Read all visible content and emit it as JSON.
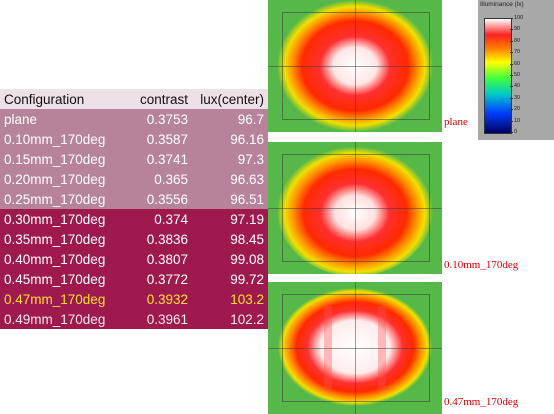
{
  "table": {
    "headers": [
      "Configuration",
      "contrast",
      "lux(center)"
    ],
    "rows": [
      [
        "plane",
        "0.3753",
        "96.7"
      ],
      [
        "0.10mm_170deg",
        "0.3587",
        "96.16"
      ],
      [
        "0.15mm_170deg",
        "0.3741",
        "97.3"
      ],
      [
        "0.20mm_170deg",
        "0.365",
        "96.63"
      ],
      [
        "0.25mm_170deg",
        "0.3556",
        "96.51"
      ],
      [
        "0.30mm_170deg",
        "0.374",
        "97.19"
      ],
      [
        "0.35mm_170deg",
        "0.3836",
        "98.45"
      ],
      [
        "0.40mm_170deg",
        "0.3807",
        "99.08"
      ],
      [
        "0.45mm_170deg",
        "0.3772",
        "99.72"
      ],
      [
        "0.47mm_170deg",
        "0.3932",
        "103.2"
      ],
      [
        "0.49mm_170deg",
        "0.3961",
        "102.2"
      ]
    ],
    "highlighted_row": "0.47mm_170deg",
    "colors": {
      "header_bg": "#ede0e6",
      "pink": "#b7839a",
      "crimson": "#9e1a4e",
      "highlight": "#ffe033"
    }
  },
  "plots": [
    {
      "caption": "plane"
    },
    {
      "caption": "0.10mm_170deg"
    },
    {
      "caption": "0.47mm_170deg"
    }
  ],
  "legend": {
    "title": "Illuminance (lx)",
    "ticks": [
      "100",
      "90",
      "80",
      "70",
      "60",
      "50",
      "40",
      "30",
      "20",
      "10",
      "0"
    ]
  }
}
